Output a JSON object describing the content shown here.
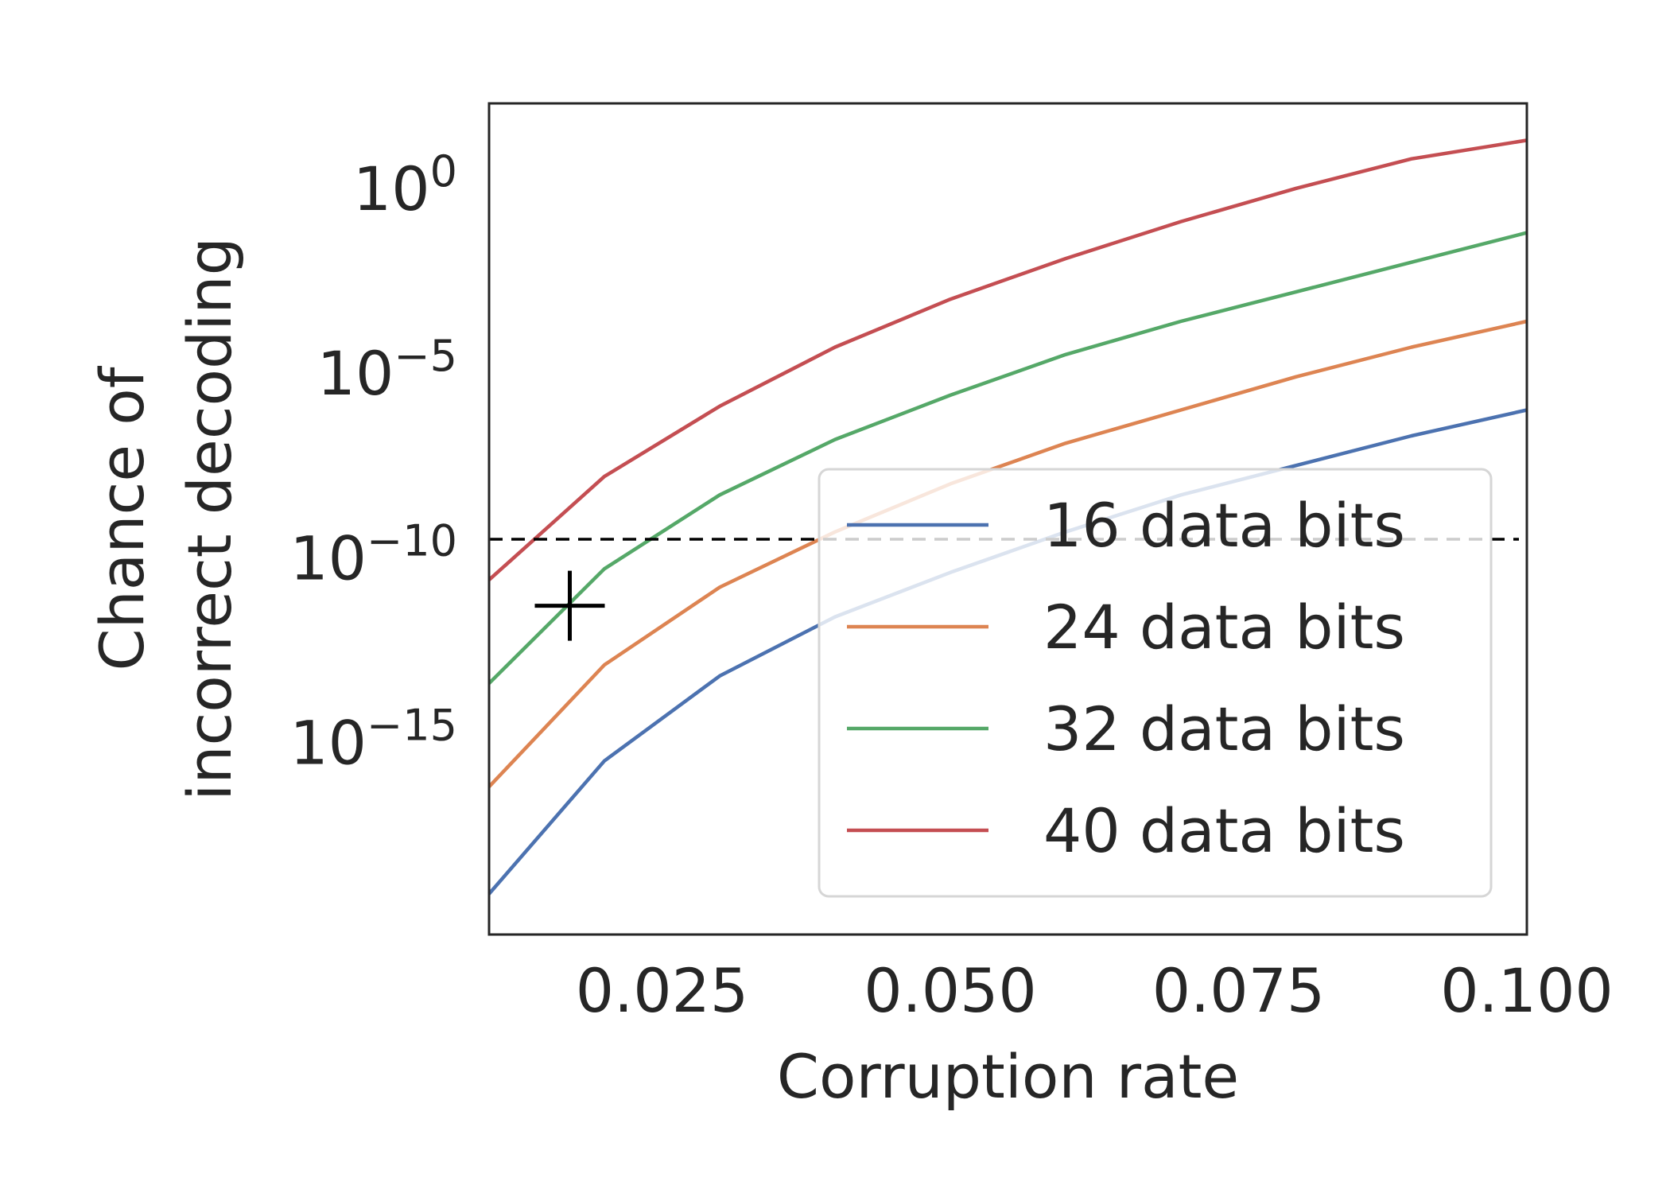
{
  "chart_data": {
    "type": "line",
    "title": "",
    "xlabel": "Corruption rate",
    "ylabel_lines": [
      "Chance of",
      "incorrect decoding"
    ],
    "xlim": [
      0.01,
      0.1
    ],
    "ylim_log10": [
      -20.2,
      2.3
    ],
    "yscale": "log",
    "grid": false,
    "legend_position": "lower-right",
    "x_ticks": [
      {
        "value": 0.025,
        "label": "0.025"
      },
      {
        "value": 0.05,
        "label": "0.050"
      },
      {
        "value": 0.075,
        "label": "0.075"
      },
      {
        "value": 0.1,
        "label": "0.100"
      }
    ],
    "y_ticks": [
      {
        "exp": 0,
        "base": "10",
        "sup": "0"
      },
      {
        "exp": -5,
        "base": "10",
        "sup": "−5"
      },
      {
        "exp": -10,
        "base": "10",
        "sup": "−10"
      },
      {
        "exp": -15,
        "base": "10",
        "sup": "−15"
      }
    ],
    "x": [
      0.01,
      0.02,
      0.03,
      0.04,
      0.05,
      0.06,
      0.07,
      0.08,
      0.09,
      0.1
    ],
    "series": [
      {
        "name": "16 data bits",
        "color": "#4c72b0",
        "log10_y": [
          -19.1,
          -15.5,
          -13.2,
          -11.6,
          -10.4,
          -9.3,
          -8.3,
          -7.5,
          -6.7,
          -6.0
        ]
      },
      {
        "name": "24 data bits",
        "color": "#dd8452",
        "log10_y": [
          -16.2,
          -12.9,
          -10.8,
          -9.3,
          -8.0,
          -6.9,
          -6.0,
          -5.1,
          -4.3,
          -3.6
        ]
      },
      {
        "name": "32 data bits",
        "color": "#55a868",
        "log10_y": [
          -13.4,
          -10.3,
          -8.3,
          -6.8,
          -5.6,
          -4.5,
          -3.6,
          -2.8,
          -2.0,
          -1.2
        ]
      },
      {
        "name": "40 data bits",
        "color": "#c44e52",
        "log10_y": [
          -10.6,
          -7.8,
          -5.9,
          -4.3,
          -3.0,
          -1.9,
          -0.9,
          0.0,
          0.8,
          1.3
        ]
      }
    ],
    "threshold_line": {
      "log10_y": -9.5,
      "style": "dashed",
      "color": "#000000"
    },
    "marker": {
      "x": 0.017,
      "log10_y": -11.3,
      "symbol": "+",
      "color": "#000000"
    }
  }
}
